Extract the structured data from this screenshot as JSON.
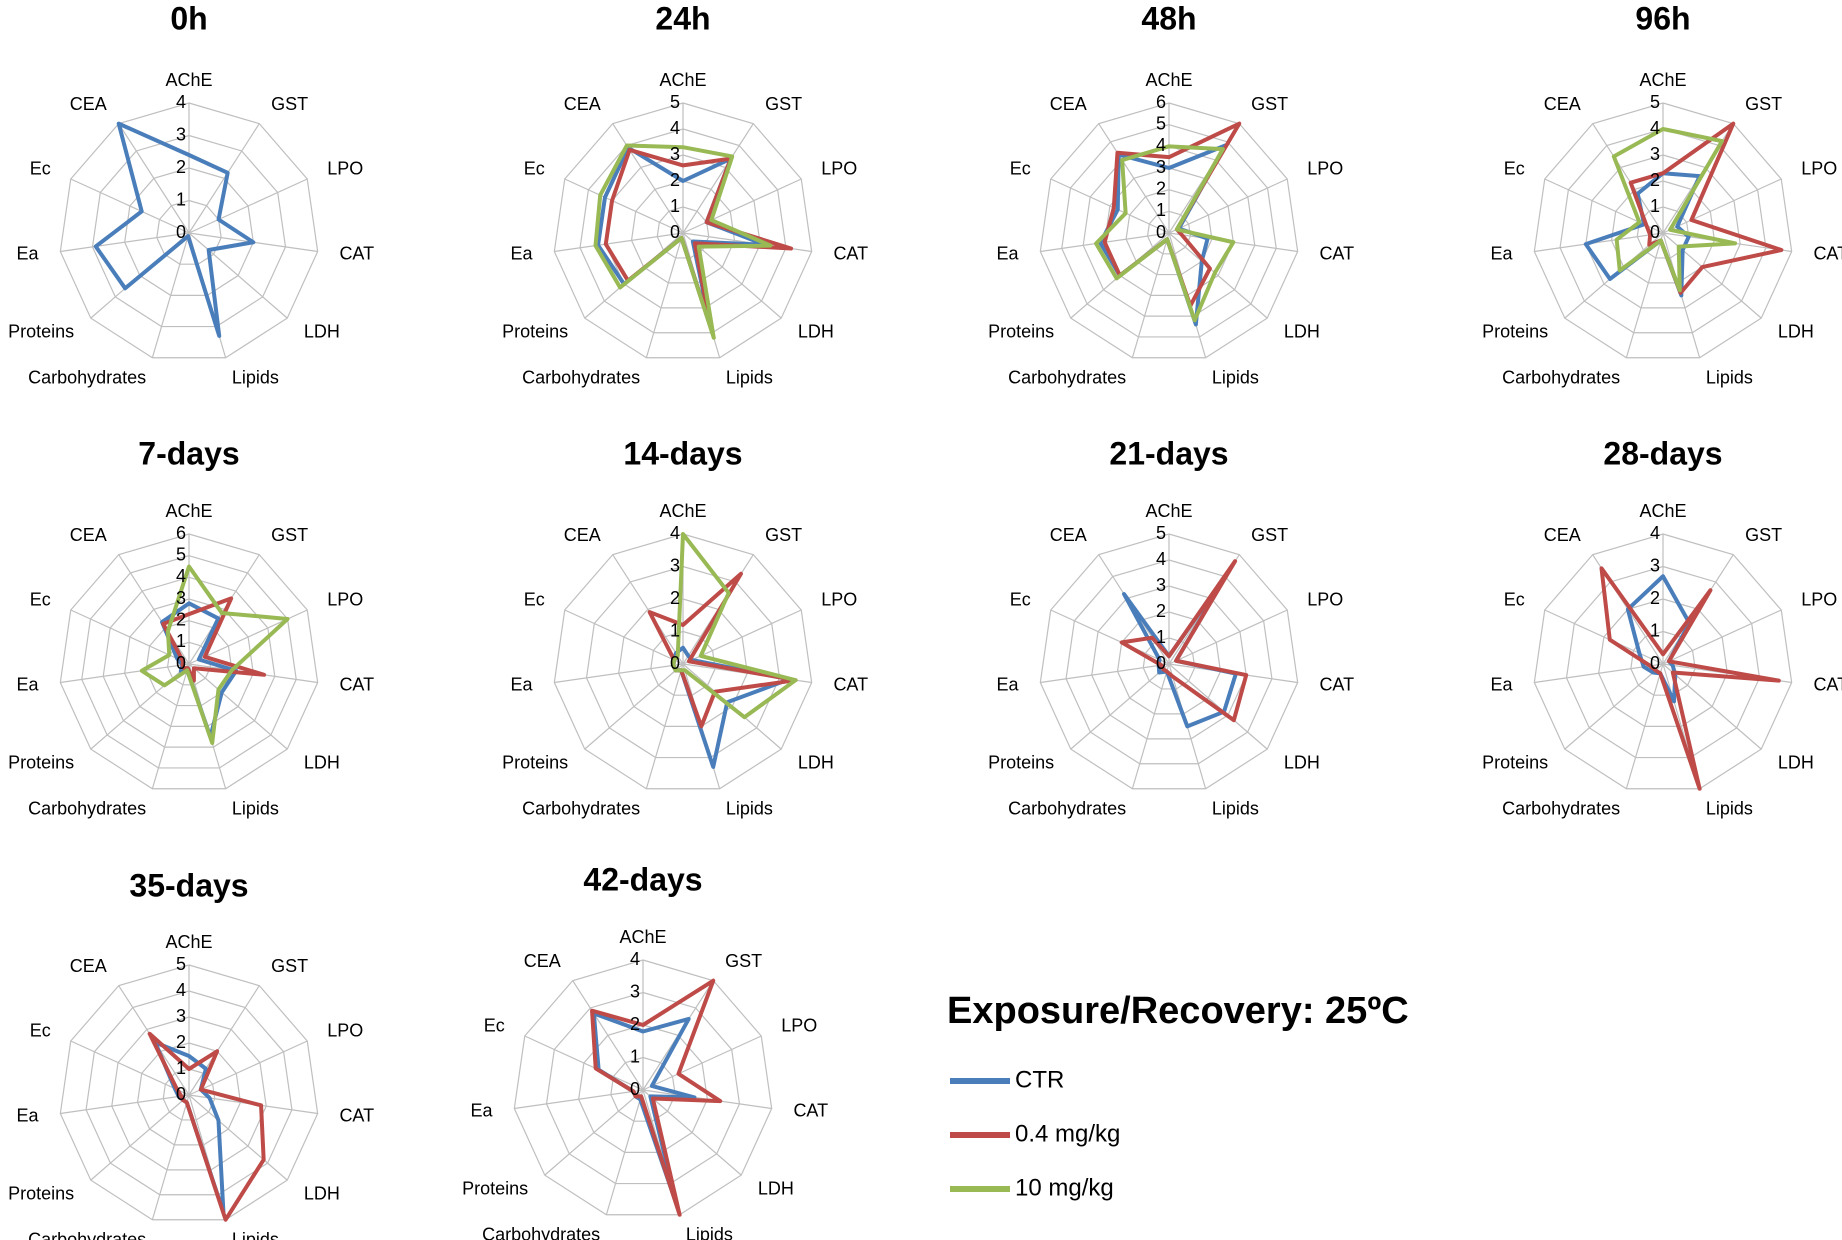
{
  "figure_title": "Exposure/Recovery: 25ºC",
  "chart_data": [
    {
      "type": "radar",
      "title": "0h",
      "categories": [
        "AChE",
        "GST",
        "LPO",
        "CAT",
        "LDH",
        "Lipids",
        "Carbohydrates",
        "Proteins",
        "Ea",
        "Ec",
        "CEA"
      ],
      "rlim": [
        0,
        4
      ],
      "rticks": [
        0,
        1,
        2,
        3,
        4
      ],
      "series": [
        {
          "name": "CTR",
          "color": "#4a7ebb",
          "values": [
            2.4,
            2.2,
            1.0,
            2.0,
            0.8,
            3.3,
            0.1,
            2.6,
            2.9,
            1.6,
            4.0
          ]
        }
      ]
    },
    {
      "type": "radar",
      "title": "24h",
      "categories": [
        "AChE",
        "GST",
        "LPO",
        "CAT",
        "LDH",
        "Lipids",
        "Carbohydrates",
        "Proteins",
        "Ea",
        "Ec",
        "CEA"
      ],
      "rlim": [
        0,
        5
      ],
      "rticks": [
        0,
        1,
        2,
        3,
        4,
        5
      ],
      "series": [
        {
          "name": "CTR",
          "color": "#4a7ebb",
          "values": [
            2.0,
            3.4,
            1.0,
            3.2,
            0.5,
            3.8,
            0.2,
            3.0,
            3.3,
            3.3,
            3.9
          ]
        },
        {
          "name": "0.4 mg/kg",
          "color": "#be4b48",
          "values": [
            2.6,
            3.4,
            1.0,
            4.2,
            0.6,
            3.8,
            0.2,
            2.8,
            3.0,
            3.0,
            3.8
          ]
        },
        {
          "name": "10 mg/kg",
          "color": "#98b954",
          "values": [
            3.3,
            3.5,
            1.2,
            3.4,
            0.8,
            4.2,
            0.2,
            3.2,
            3.4,
            3.5,
            4.0
          ]
        }
      ]
    },
    {
      "type": "radar",
      "title": "48h",
      "categories": [
        "AChE",
        "GST",
        "LPO",
        "CAT",
        "LDH",
        "Lipids",
        "Carbohydrates",
        "Proteins",
        "Ea",
        "Ec",
        "CEA"
      ],
      "rlim": [
        0,
        6
      ],
      "rticks": [
        0,
        1,
        2,
        3,
        4,
        5,
        6
      ],
      "series": [
        {
          "name": "CTR",
          "color": "#4a7ebb",
          "values": [
            3.0,
            4.8,
            0.5,
            1.8,
            2.0,
            4.4,
            0.3,
            3.0,
            3.2,
            2.6,
            4.3
          ]
        },
        {
          "name": "0.4 mg/kg",
          "color": "#be4b48",
          "values": [
            3.5,
            6.0,
            0.4,
            0.6,
            2.5,
            3.5,
            0.3,
            3.0,
            3.0,
            2.8,
            4.4
          ]
        },
        {
          "name": "10 mg/kg",
          "color": "#98b954",
          "values": [
            4.0,
            4.6,
            0.4,
            3.0,
            2.8,
            4.2,
            0.3,
            3.2,
            3.4,
            2.2,
            4.0
          ]
        }
      ]
    },
    {
      "type": "radar",
      "title": "96h",
      "categories": [
        "AChE",
        "GST",
        "LPO",
        "CAT",
        "LDH",
        "Lipids",
        "Carbohydrates",
        "Proteins",
        "Ea",
        "Ec",
        "CEA"
      ],
      "rlim": [
        0,
        5
      ],
      "rticks": [
        0,
        1,
        2,
        3,
        4,
        5
      ],
      "series": [
        {
          "name": "CTR",
          "color": "#4a7ebb",
          "values": [
            2.3,
            2.6,
            0.6,
            1.0,
            1.0,
            2.5,
            0.3,
            2.7,
            3.0,
            0.8,
            1.8
          ]
        },
        {
          "name": "0.4 mg/kg",
          "color": "#be4b48",
          "values": [
            2.3,
            5.0,
            1.2,
            4.6,
            2.0,
            2.4,
            0.3,
            0.7,
            0.5,
            0.7,
            2.3
          ]
        },
        {
          "name": "10 mg/kg",
          "color": "#98b954",
          "values": [
            4.0,
            4.2,
            0.3,
            2.8,
            0.8,
            2.3,
            0.3,
            2.2,
            1.8,
            1.0,
            3.5
          ]
        }
      ]
    },
    {
      "type": "radar",
      "title": "7-days",
      "categories": [
        "AChE",
        "GST",
        "LPO",
        "CAT",
        "LDH",
        "Lipids",
        "Carbohydrates",
        "Proteins",
        "Ea",
        "Ec",
        "CEA"
      ],
      "rlim": [
        0,
        6
      ],
      "rticks": [
        0,
        1,
        2,
        3,
        4,
        5,
        6
      ],
      "series": [
        {
          "name": "CTR",
          "color": "#4a7ebb",
          "values": [
            2.8,
            2.5,
            0.5,
            2.2,
            2.0,
            3.5,
            0.3,
            0.5,
            0.3,
            0.6,
            2.3
          ]
        },
        {
          "name": "0.4 mg/kg",
          "color": "#be4b48",
          "values": [
            2.3,
            3.6,
            0.8,
            3.5,
            0.3,
            0.8,
            0.2,
            0.3,
            0.3,
            0.3,
            2.2
          ]
        },
        {
          "name": "10 mg/kg",
          "color": "#98b954",
          "values": [
            4.5,
            2.8,
            5.0,
            2.0,
            1.8,
            3.8,
            0.3,
            1.5,
            2.2,
            1.0,
            1.8
          ]
        }
      ]
    },
    {
      "type": "radar",
      "title": "14-days",
      "categories": [
        "AChE",
        "GST",
        "LPO",
        "CAT",
        "LDH",
        "Lipids",
        "Carbohydrates",
        "Proteins",
        "Ea",
        "Ec",
        "CEA"
      ],
      "rlim": [
        0,
        4
      ],
      "rticks": [
        0,
        1,
        2,
        3,
        4
      ],
      "series": [
        {
          "name": "CTR",
          "color": "#4a7ebb",
          "values": [
            0.5,
            0.3,
            0.3,
            3.3,
            1.8,
            3.3,
            0.2,
            0.3,
            0.3,
            0.3,
            0.4
          ]
        },
        {
          "name": "0.4 mg/kg",
          "color": "#be4b48",
          "values": [
            1.2,
            3.3,
            0.2,
            3.5,
            1.3,
            2.0,
            0.2,
            0.3,
            0.3,
            0.3,
            1.9
          ]
        },
        {
          "name": "10 mg/kg",
          "color": "#98b954",
          "values": [
            4.0,
            2.6,
            0.6,
            3.5,
            2.5,
            0.2,
            0.2,
            0.3,
            0.3,
            0.3,
            0.3
          ]
        }
      ]
    },
    {
      "type": "radar",
      "title": "21-days",
      "categories": [
        "AChE",
        "GST",
        "LPO",
        "CAT",
        "LDH",
        "Lipids",
        "Carbohydrates",
        "Proteins",
        "Ea",
        "Ec",
        "CEA"
      ],
      "rlim": [
        0,
        5
      ],
      "rticks": [
        0,
        1,
        2,
        3,
        4,
        5
      ],
      "series": [
        {
          "name": "CTR",
          "color": "#4a7ebb",
          "values": [
            0.3,
            4.3,
            0.3,
            2.6,
            2.8,
            2.5,
            0.3,
            0.5,
            0.4,
            0.4,
            3.2
          ]
        },
        {
          "name": "0.4 mg/kg",
          "color": "#be4b48",
          "values": [
            0.3,
            4.7,
            0.3,
            3.0,
            3.3,
            0.5,
            0.3,
            0.3,
            0.3,
            2.0,
            1.2
          ]
        }
      ]
    },
    {
      "type": "radar",
      "title": "28-days",
      "categories": [
        "AChE",
        "GST",
        "LPO",
        "CAT",
        "LDH",
        "Lipids",
        "Carbohydrates",
        "Proteins",
        "Ea",
        "Ec",
        "CEA"
      ],
      "rlim": [
        0,
        4
      ],
      "rticks": [
        0,
        1,
        2,
        3,
        4
      ],
      "series": [
        {
          "name": "CTR",
          "color": "#4a7ebb",
          "values": [
            2.7,
            1.5,
            0.2,
            0.3,
            0.5,
            1.2,
            0.3,
            0.4,
            0.6,
            0.8,
            2.0
          ]
        },
        {
          "name": "0.4 mg/kg",
          "color": "#be4b48",
          "values": [
            0.3,
            2.7,
            0.2,
            3.6,
            0.4,
            4.0,
            0.3,
            0.3,
            0.4,
            1.8,
            3.5
          ]
        }
      ]
    },
    {
      "type": "radar",
      "title": "35-days",
      "categories": [
        "AChE",
        "GST",
        "LPO",
        "CAT",
        "LDH",
        "Lipids",
        "Carbohydrates",
        "Proteins",
        "Ea",
        "Ec",
        "CEA"
      ],
      "rlim": [
        0,
        5
      ],
      "rticks": [
        0,
        1,
        2,
        3,
        4,
        5
      ],
      "series": [
        {
          "name": "CTR",
          "color": "#4a7ebb",
          "values": [
            1.5,
            1.2,
            0.5,
            0.8,
            1.5,
            4.7,
            0.3,
            0.3,
            0.4,
            0.6,
            2.4
          ]
        },
        {
          "name": "0.4 mg/kg",
          "color": "#be4b48",
          "values": [
            1.0,
            2.0,
            0.5,
            2.8,
            3.8,
            5.0,
            0.3,
            0.3,
            0.3,
            0.5,
            2.8
          ]
        }
      ]
    },
    {
      "type": "radar",
      "title": "42-days",
      "categories": [
        "AChE",
        "GST",
        "LPO",
        "CAT",
        "LDH",
        "Lipids",
        "Carbohydrates",
        "Proteins",
        "Ea",
        "Ec",
        "CEA"
      ],
      "rlim": [
        0,
        4
      ],
      "rticks": [
        0,
        1,
        2,
        3,
        4
      ],
      "series": [
        {
          "name": "CTR",
          "color": "#4a7ebb",
          "values": [
            1.8,
            2.6,
            0.3,
            1.6,
            0.3,
            3.7,
            0.3,
            0.3,
            0.3,
            1.5,
            2.8
          ]
        },
        {
          "name": "0.4 mg/kg",
          "color": "#be4b48",
          "values": [
            2.0,
            4.0,
            1.2,
            2.4,
            0.4,
            4.0,
            0.2,
            0.3,
            0.3,
            1.6,
            2.9
          ]
        }
      ]
    }
  ]
}
